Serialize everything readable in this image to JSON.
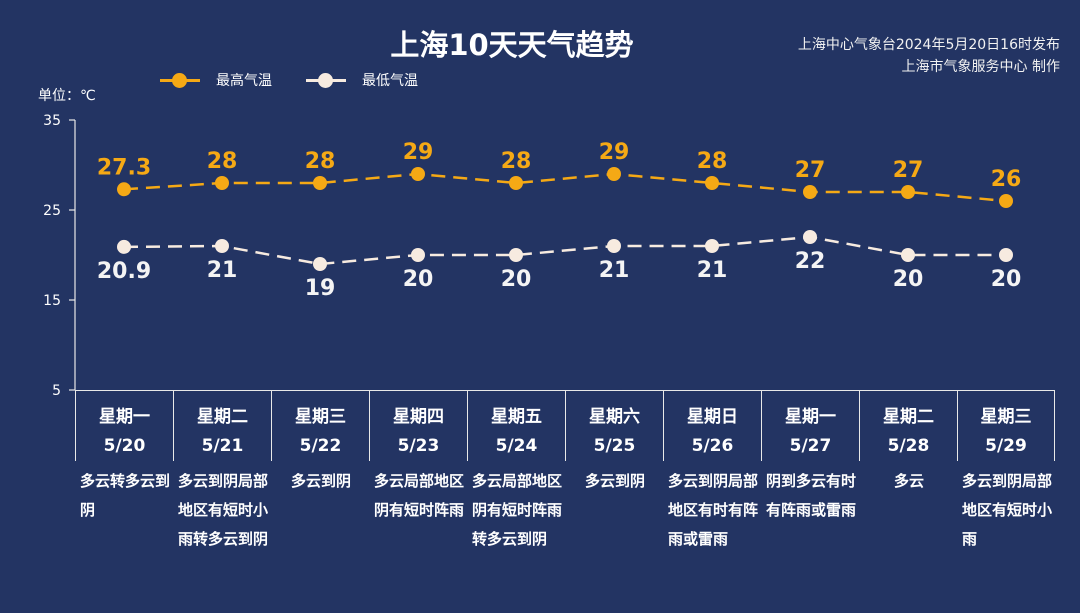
{
  "header": {
    "title": "上海10天天气趋势",
    "publisher_line1": "上海中心气象台2024年5月20日16时发布",
    "publisher_line2": "上海市气象服务中心 制作"
  },
  "legend": [
    {
      "label": "最高气温",
      "color": "#f5a915"
    },
    {
      "label": "最低气温",
      "color": "#f7ebe0"
    }
  ],
  "unit_label": "单位：℃",
  "colors": {
    "background": "#233463",
    "high": "#f5a915",
    "low": "#f7ebe0",
    "axis": "#e8e8e8"
  },
  "days": [
    {
      "weekday": "星期一",
      "date": "5/20",
      "desc": "多云转多云到阴"
    },
    {
      "weekday": "星期二",
      "date": "5/21",
      "desc": "多云到阴局部地区有短时小雨转多云到阴"
    },
    {
      "weekday": "星期三",
      "date": "5/22",
      "desc": "多云到阴"
    },
    {
      "weekday": "星期四",
      "date": "5/23",
      "desc": "多云局部地区阴有短时阵雨"
    },
    {
      "weekday": "星期五",
      "date": "5/24",
      "desc": "多云局部地区阴有短时阵雨转多云到阴"
    },
    {
      "weekday": "星期六",
      "date": "5/25",
      "desc": "多云到阴"
    },
    {
      "weekday": "星期日",
      "date": "5/26",
      "desc": "多云到阴局部地区有时有阵雨或雷雨"
    },
    {
      "weekday": "星期一",
      "date": "5/27",
      "desc": "阴到多云有时有阵雨或雷雨"
    },
    {
      "weekday": "星期二",
      "date": "5/28",
      "desc": "多云"
    },
    {
      "weekday": "星期三",
      "date": "5/29",
      "desc": "多云到阴局部地区有短时小雨"
    }
  ],
  "chart_data": {
    "type": "line",
    "title": "上海10天天气趋势",
    "xlabel": "",
    "ylabel": "单位：℃",
    "categories": [
      "5/20",
      "5/21",
      "5/22",
      "5/23",
      "5/24",
      "5/25",
      "5/26",
      "5/27",
      "5/28",
      "5/29"
    ],
    "series": [
      {
        "name": "最高气温",
        "values": [
          27.3,
          28,
          28,
          29,
          28,
          29,
          28,
          27,
          27,
          26
        ],
        "labels": [
          "27.3",
          "28",
          "28",
          "29",
          "28",
          "29",
          "28",
          "27",
          "27",
          "26"
        ]
      },
      {
        "name": "最低气温",
        "values": [
          20.9,
          21,
          19,
          20,
          20,
          21,
          21,
          22,
          20,
          20
        ],
        "labels": [
          "20.9",
          "21",
          "19",
          "20",
          "20",
          "21",
          "21",
          "22",
          "20",
          "20"
        ]
      }
    ],
    "ylim": [
      5,
      35
    ],
    "yticks": [
      5,
      15,
      25,
      35
    ],
    "grid": false,
    "legend_position": "top",
    "line_style": "dashed"
  }
}
